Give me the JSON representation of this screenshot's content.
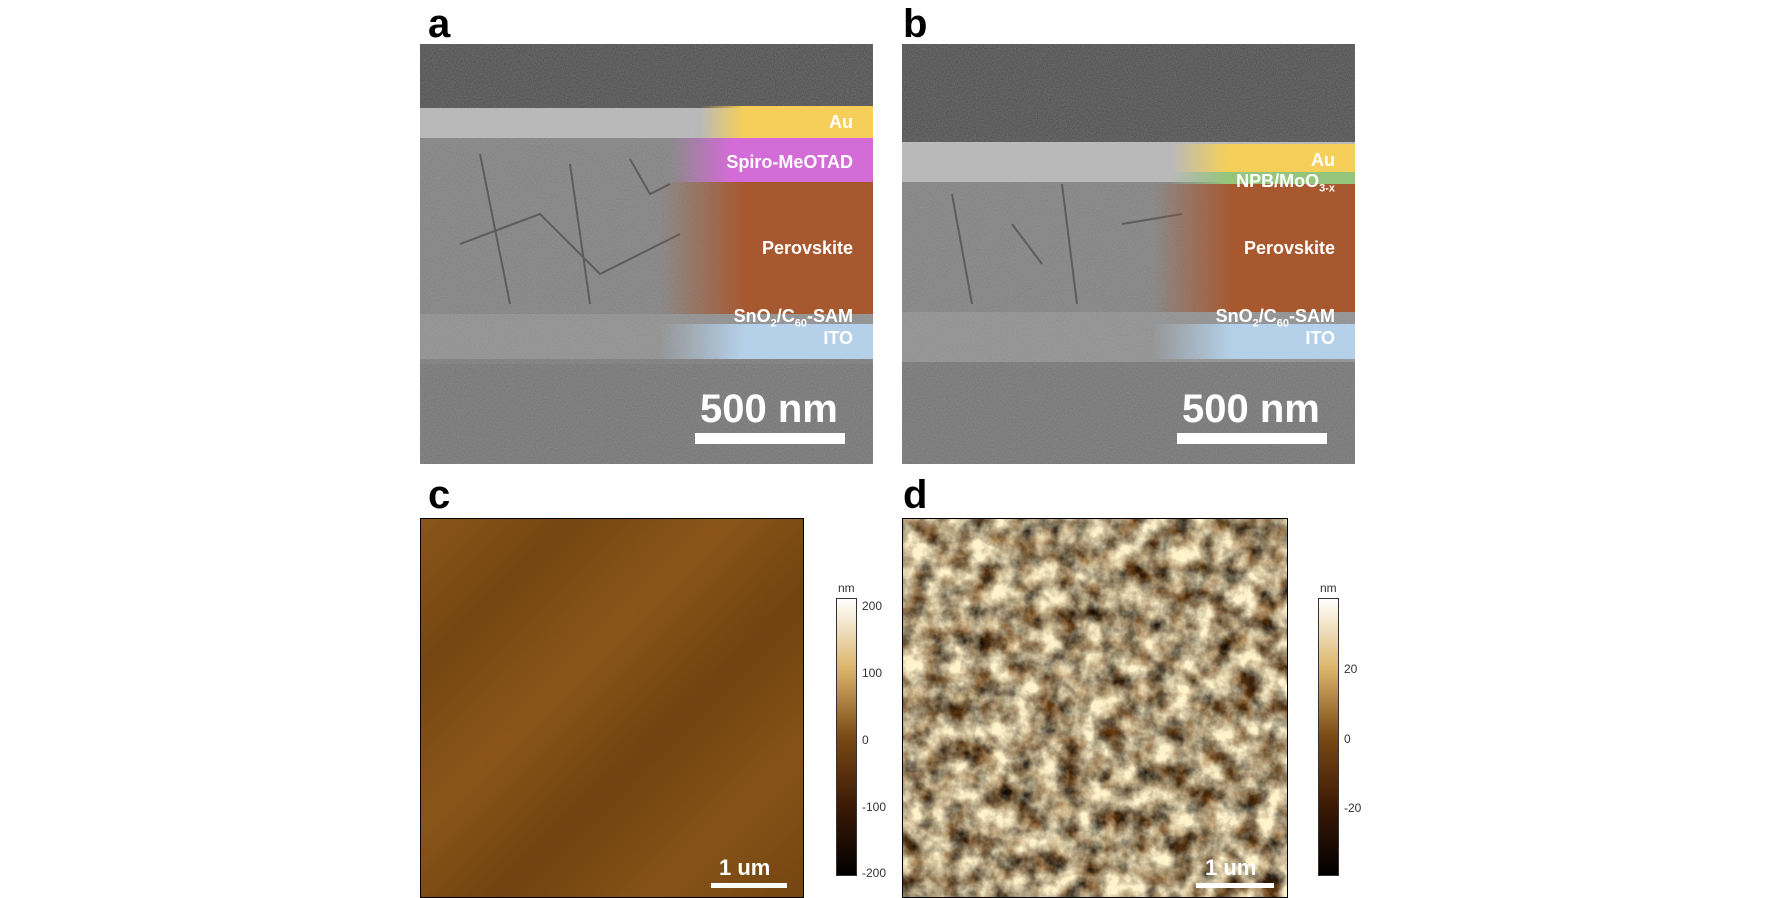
{
  "panels": {
    "a": {
      "label": "a",
      "layers": {
        "au": "Au",
        "spiro": "Spiro-MeOTAD",
        "perovskite": "Perovskite",
        "sno2_base": "SnO",
        "sno2_sub": "2",
        "c60_mid": "/C",
        "c60_sub": "60",
        "sam": "-SAM",
        "ito": "ITO"
      },
      "scalebar": "500 nm"
    },
    "b": {
      "label": "b",
      "layers": {
        "au": "Au",
        "npb_base": "NPB/MoO",
        "npb_sub": "3-x",
        "perovskite": "Perovskite",
        "sno2_base": "SnO",
        "sno2_sub": "2",
        "c60_mid": "/C",
        "c60_sub": "60",
        "sam": "-SAM",
        "ito": "ITO"
      },
      "scalebar": "500 nm"
    },
    "c": {
      "label": "c",
      "scalebar": "1 um",
      "colorbar": {
        "unit": "nm",
        "ticks": [
          "200",
          "100",
          "0",
          "-100",
          "-200"
        ]
      }
    },
    "d": {
      "label": "d",
      "scalebar": "1 um",
      "colorbar": {
        "unit": "nm",
        "ticks": [
          "20",
          "0",
          "-20"
        ]
      }
    }
  },
  "colors": {
    "au": "#f5cf5a",
    "spiro": "#d36cd6",
    "perovskite": "#a9552a",
    "ito": "#b5d1ea",
    "npb": "#95c57a",
    "afm_brown": "#7a4a15"
  }
}
